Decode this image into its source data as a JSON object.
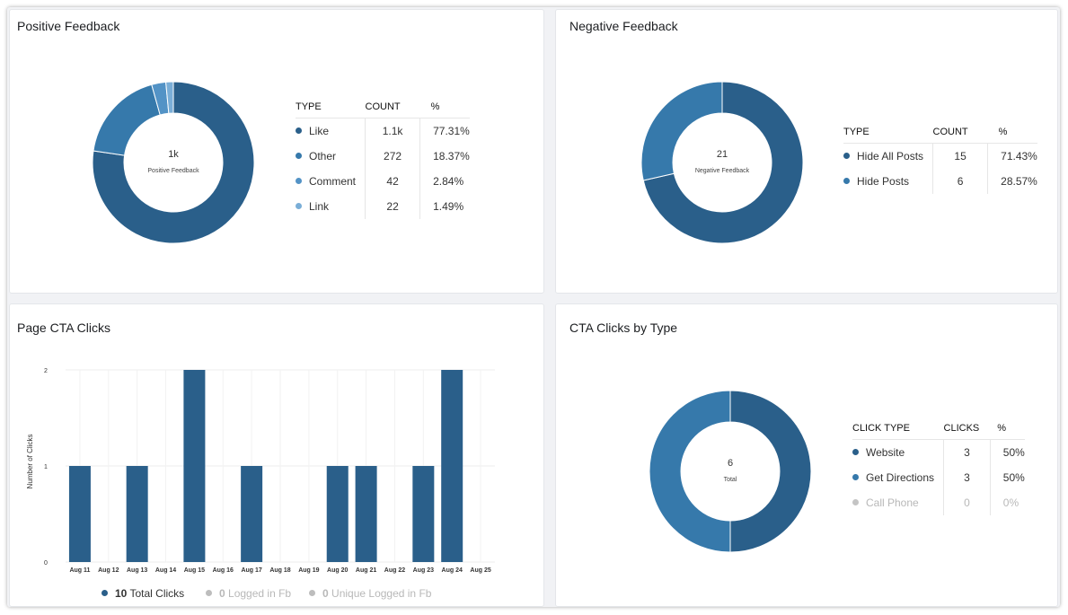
{
  "positive": {
    "title": "Positive Feedback",
    "center_value": "1k",
    "center_label": "Positive Feedback",
    "headers": [
      "TYPE",
      "COUNT",
      "%"
    ],
    "rows": [
      {
        "type": "Like",
        "count": "1.1k",
        "pct": "77.31%",
        "color": "#2a5f8a"
      },
      {
        "type": "Other",
        "count": "272",
        "pct": "18.37%",
        "color": "#3679ab"
      },
      {
        "type": "Comment",
        "count": "42",
        "pct": "2.84%",
        "color": "#5393c6"
      },
      {
        "type": "Link",
        "count": "22",
        "pct": "1.49%",
        "color": "#7aaed7"
      }
    ]
  },
  "negative": {
    "title": "Negative Feedback",
    "center_value": "21",
    "center_label": "Negative Feedback",
    "headers": [
      "TYPE",
      "COUNT",
      "%"
    ],
    "rows": [
      {
        "type": "Hide All Posts",
        "count": "15",
        "pct": "71.43%",
        "color": "#2a5f8a"
      },
      {
        "type": "Hide Posts",
        "count": "6",
        "pct": "28.57%",
        "color": "#3679ab"
      }
    ]
  },
  "cta_clicks": {
    "title": "Page CTA Clicks",
    "ylabel": "Number of Clicks",
    "legend": [
      {
        "value": "10",
        "label": "Total Clicks",
        "color": "#2a5f8a"
      },
      {
        "value": "0",
        "label": "Logged in Fb",
        "color": "#bdbdbd"
      },
      {
        "value": "0",
        "label": "Unique Logged in Fb",
        "color": "#bdbdbd"
      }
    ]
  },
  "cta_type": {
    "title": "CTA Clicks by Type",
    "center_value": "6",
    "center_label": "Total",
    "headers": [
      "CLICK TYPE",
      "CLICKS",
      "%"
    ],
    "rows": [
      {
        "type": "Website",
        "count": "3",
        "pct": "50%",
        "color": "#2a5f8a"
      },
      {
        "type": "Get Directions",
        "count": "3",
        "pct": "50%",
        "color": "#3679ab"
      },
      {
        "type": "Call Phone",
        "count": "0",
        "pct": "0%",
        "color": "#c4c4c4"
      }
    ]
  },
  "chart_data": [
    {
      "type": "pie",
      "title": "Positive Feedback",
      "categories": [
        "Like",
        "Other",
        "Comment",
        "Link"
      ],
      "values": [
        77.31,
        18.37,
        2.84,
        1.49
      ]
    },
    {
      "type": "pie",
      "title": "Negative Feedback",
      "categories": [
        "Hide All Posts",
        "Hide Posts"
      ],
      "values": [
        71.43,
        28.57
      ]
    },
    {
      "type": "bar",
      "title": "Page CTA Clicks",
      "xlabel": "",
      "ylabel": "Number of Clicks",
      "categories": [
        "Aug 11",
        "Aug 12",
        "Aug 13",
        "Aug 14",
        "Aug 15",
        "Aug 16",
        "Aug 17",
        "Aug 18",
        "Aug 19",
        "Aug 20",
        "Aug 21",
        "Aug 22",
        "Aug 23",
        "Aug 24",
        "Aug 25"
      ],
      "values": [
        1,
        0,
        1,
        0,
        2,
        0,
        1,
        0,
        0,
        1,
        1,
        0,
        1,
        2,
        0
      ],
      "y_ticks": [
        "0",
        "1",
        "2"
      ],
      "ylim": [
        0,
        2
      ],
      "grid": true
    },
    {
      "type": "pie",
      "title": "CTA Clicks by Type",
      "categories": [
        "Website",
        "Get Directions",
        "Call Phone"
      ],
      "values": [
        50,
        50,
        0
      ]
    }
  ]
}
